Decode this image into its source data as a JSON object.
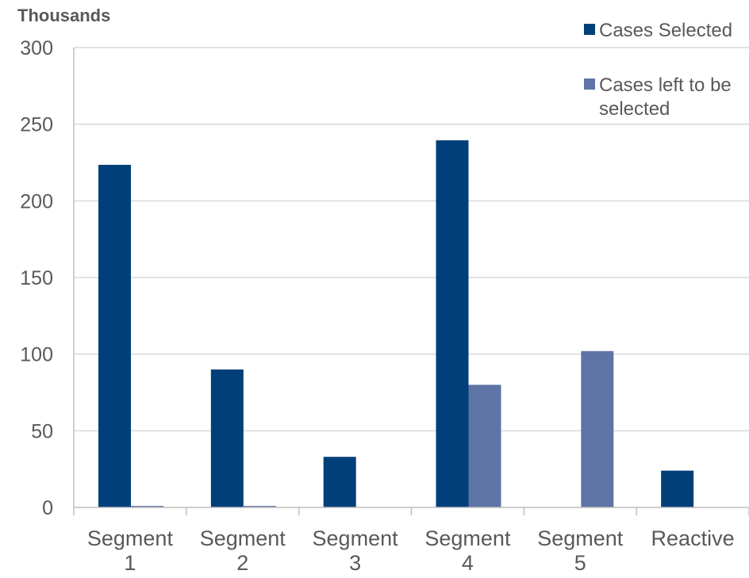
{
  "chart_data": {
    "type": "bar",
    "unit_label": "Thousands",
    "categories": [
      [
        "Segment",
        "1"
      ],
      [
        "Segment",
        "2"
      ],
      [
        "Segment",
        "3"
      ],
      [
        "Segment",
        "4"
      ],
      [
        "Segment",
        "5"
      ],
      [
        "Reactive"
      ]
    ],
    "series": [
      {
        "name": "Cases Selected",
        "color": "#003f7a",
        "values": [
          223.5,
          90,
          33,
          239.5,
          0,
          24
        ]
      },
      {
        "name": "Cases left to be selected",
        "name_lines": [
          "Cases left to be",
          "selected"
        ],
        "color": "#5e74a6",
        "values": [
          1,
          1,
          0,
          80,
          102,
          0
        ]
      }
    ],
    "ylim": [
      0,
      300
    ],
    "yticks": [
      0,
      50,
      100,
      150,
      200,
      250,
      300
    ],
    "grid": true,
    "legend_position": "top-right"
  }
}
